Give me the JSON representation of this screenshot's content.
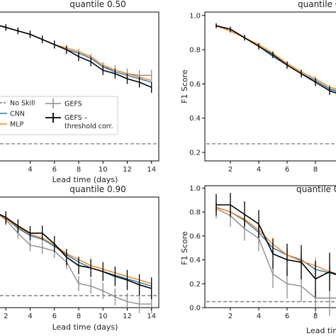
{
  "colors": {
    "no_skill": "#777777",
    "cnn": "#1f77b4",
    "mlp": "#ff7f0e",
    "gefs": "#8c8c8c",
    "gefs_corr": "#000000"
  },
  "legend": {
    "no_skill": "No Skill",
    "cnn": "CNN",
    "mlp": "MLP",
    "gefs": "GEFS",
    "gefs_corr_line1": "GEFS –",
    "gefs_corr_line2": "threshold corr."
  },
  "chart_data": [
    {
      "type": "line",
      "title": "quantile 0.50",
      "xlabel": "Lead time (days)",
      "ylabel": "",
      "xlim": [
        1.4,
        14.6
      ],
      "ylim": [
        0.15,
        1.02
      ],
      "xticks": [
        4,
        6,
        8,
        10,
        12,
        14
      ],
      "yticks": [],
      "no_skill": 0.25,
      "x": [
        1,
        2,
        3,
        4,
        5,
        6,
        7,
        8,
        9,
        10,
        11,
        12,
        13,
        14
      ],
      "series": [
        {
          "key": "cnn",
          "values": [
            0.95,
            0.93,
            0.91,
            0.89,
            0.86,
            0.83,
            0.8,
            0.78,
            0.75,
            0.7,
            0.67,
            0.65,
            0.63,
            0.61
          ],
          "err": 0
        },
        {
          "key": "mlp",
          "values": [
            0.95,
            0.93,
            0.91,
            0.89,
            0.86,
            0.83,
            0.81,
            0.79,
            0.76,
            0.71,
            0.68,
            0.66,
            0.64,
            0.62
          ],
          "err": 0
        },
        {
          "key": "gefs",
          "values": [
            0.95,
            0.93,
            0.91,
            0.89,
            0.86,
            0.83,
            0.8,
            0.78,
            0.75,
            0.7,
            0.68,
            0.66,
            0.65,
            0.65
          ],
          "err": 0.025
        },
        {
          "key": "gefs_corr",
          "values": [
            0.95,
            0.93,
            0.91,
            0.89,
            0.86,
            0.83,
            0.8,
            0.76,
            0.73,
            0.68,
            0.66,
            0.63,
            0.61,
            0.58
          ],
          "err": 0.025
        }
      ]
    },
    {
      "type": "line",
      "title": "quantile 0.75",
      "xlabel": "",
      "ylabel": "F1 Score",
      "xlim": [
        0.2,
        9.8
      ],
      "ylim": [
        0.15,
        1.02
      ],
      "xticks": [
        2,
        4,
        6,
        8
      ],
      "yticks": [
        0.2,
        0.4,
        0.6,
        0.8,
        1.0
      ],
      "no_skill": 0.25,
      "x": [
        1,
        2,
        3,
        4,
        5,
        6,
        7,
        8,
        9,
        10
      ],
      "series": [
        {
          "key": "cnn",
          "values": [
            0.94,
            0.91,
            0.87,
            0.82,
            0.76,
            0.71,
            0.66,
            0.62,
            0.57,
            0.55
          ],
          "err": 0
        },
        {
          "key": "mlp",
          "values": [
            0.94,
            0.91,
            0.87,
            0.83,
            0.78,
            0.72,
            0.67,
            0.63,
            0.58,
            0.56
          ],
          "err": 0
        },
        {
          "key": "gefs",
          "values": [
            0.94,
            0.91,
            0.87,
            0.82,
            0.77,
            0.71,
            0.66,
            0.62,
            0.57,
            0.54
          ],
          "err": 0.02
        },
        {
          "key": "gefs_corr",
          "values": [
            0.94,
            0.92,
            0.87,
            0.82,
            0.77,
            0.71,
            0.66,
            0.61,
            0.56,
            0.53
          ],
          "err": 0.02
        }
      ]
    },
    {
      "type": "line",
      "title": "quantile 0.90",
      "xlabel": "Lead time (days)",
      "ylabel": "",
      "xlim": [
        1.4,
        14.6
      ],
      "ylim": [
        0.0,
        0.92
      ],
      "xticks": [
        2,
        4,
        6,
        8,
        10,
        12,
        14
      ],
      "yticks": [],
      "no_skill": 0.1,
      "x": [
        1,
        2,
        3,
        4,
        5,
        6,
        7,
        8,
        9,
        10,
        11,
        12,
        13,
        14
      ],
      "series": [
        {
          "key": "cnn",
          "values": [
            0.8,
            0.74,
            0.66,
            0.6,
            0.57,
            0.51,
            0.44,
            0.38,
            0.33,
            0.3,
            0.27,
            0.24,
            0.21,
            0.18
          ],
          "err": 0
        },
        {
          "key": "mlp",
          "values": [
            0.8,
            0.74,
            0.67,
            0.61,
            0.58,
            0.52,
            0.45,
            0.4,
            0.35,
            0.32,
            0.29,
            0.26,
            0.23,
            0.2
          ],
          "err": 0
        },
        {
          "key": "gefs",
          "values": [
            0.8,
            0.73,
            0.62,
            0.52,
            0.5,
            0.47,
            0.38,
            0.2,
            0.18,
            0.14,
            0.09,
            0.05,
            0.03,
            0.03
          ],
          "err": 0.06
        },
        {
          "key": "gefs_corr",
          "values": [
            0.8,
            0.75,
            0.68,
            0.62,
            0.62,
            0.53,
            0.42,
            0.35,
            0.33,
            0.3,
            0.26,
            0.23,
            0.19,
            0.16
          ],
          "err": 0.07
        }
      ]
    },
    {
      "type": "line",
      "title": "quantile 0.95",
      "xlabel": "Lead time (days)",
      "ylabel": "F1 Score",
      "xlim": [
        0.2,
        9.8
      ],
      "ylim": [
        0.0,
        1.02
      ],
      "xticks": [
        2,
        4,
        6,
        8
      ],
      "yticks": [
        0.0,
        0.2,
        0.4,
        0.6,
        0.8,
        1.0
      ],
      "no_skill": 0.05,
      "x": [
        1,
        2,
        3,
        4,
        5,
        6,
        7,
        8,
        9,
        10
      ],
      "series": [
        {
          "key": "cnn",
          "values": [
            0.84,
            0.8,
            0.73,
            0.63,
            0.5,
            0.44,
            0.4,
            0.32,
            0.29,
            0.26
          ],
          "err": 0.05
        },
        {
          "key": "mlp",
          "values": [
            0.84,
            0.8,
            0.74,
            0.65,
            0.53,
            0.44,
            0.39,
            0.35,
            0.3,
            0.27
          ],
          "err": 0.06
        },
        {
          "key": "gefs",
          "values": [
            0.83,
            0.77,
            0.66,
            0.58,
            0.28,
            0.2,
            0.18,
            0.08,
            0.08,
            0.08
          ],
          "err": 0.12
        },
        {
          "key": "gefs_corr",
          "values": [
            0.86,
            0.86,
            0.78,
            0.7,
            0.45,
            0.4,
            0.38,
            0.24,
            0.3,
            0.25
          ],
          "err": 0.13
        }
      ]
    }
  ]
}
